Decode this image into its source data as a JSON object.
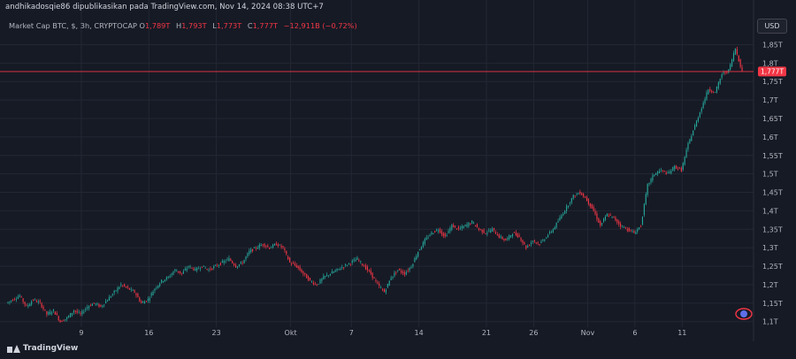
{
  "header": {
    "author": "andhikadosqie86",
    "published_text": "dipublikasikan pada TradingView.com,",
    "date": "Nov 14, 2024 08:38 UTC+7"
  },
  "legend": {
    "symbol": "Market Cap BTC, $, 3h, CRYPTOCAP",
    "open_label": "O",
    "open": "1,789T",
    "high_label": "H",
    "high": "1,793T",
    "low_label": "L",
    "low": "1,773T",
    "close_label": "C",
    "close": "1,777T",
    "change": "−12,911B (−0,72%)"
  },
  "currency_button": "USD",
  "price_badge": "1,777T",
  "footer": {
    "brand": "TradingView"
  },
  "colors": {
    "up": "#26a69a",
    "down": "#f23645",
    "background": "#161a25",
    "grid": "#232734"
  },
  "chart_data": {
    "type": "candlestick",
    "title": "Market Cap BTC, $, 3h, CRYPTOCAP",
    "grid": true,
    "y_axis_side": "right",
    "ylim": [
      1.085,
      1.875
    ],
    "y_ticks": [
      1.1,
      1.15,
      1.2,
      1.25,
      1.3,
      1.35,
      1.4,
      1.45,
      1.5,
      1.55,
      1.6,
      1.65,
      1.7,
      1.75,
      1.8,
      1.85
    ],
    "y_tick_labels": [
      "1,1T",
      "1,15T",
      "1,2T",
      "1,25T",
      "1,3T",
      "1,35T",
      "1,4T",
      "1,45T",
      "1,5T",
      "1,55T",
      "1,6T",
      "1,65T",
      "1,7T",
      "1,75T",
      "1,8T",
      "1,85T"
    ],
    "x_ticks": [
      {
        "label": "9",
        "idx": 11
      },
      {
        "label": "16",
        "idx": 21
      },
      {
        "label": "23",
        "idx": 31
      },
      {
        "label": "Okt",
        "idx": 42
      },
      {
        "label": "7",
        "idx": 51
      },
      {
        "label": "14",
        "idx": 61
      },
      {
        "label": "21",
        "idx": 71
      },
      {
        "label": "26",
        "idx": 78
      },
      {
        "label": "Nov",
        "idx": 86
      },
      {
        "label": "6",
        "idx": 93
      },
      {
        "label": "11",
        "idx": 100
      }
    ],
    "close_series": [
      1.15,
      1.16,
      1.17,
      1.14,
      1.16,
      1.15,
      1.12,
      1.13,
      1.1,
      1.11,
      1.13,
      1.12,
      1.14,
      1.15,
      1.14,
      1.16,
      1.18,
      1.2,
      1.19,
      1.18,
      1.15,
      1.16,
      1.19,
      1.21,
      1.22,
      1.24,
      1.23,
      1.25,
      1.24,
      1.25,
      1.24,
      1.25,
      1.26,
      1.27,
      1.25,
      1.26,
      1.29,
      1.3,
      1.31,
      1.3,
      1.31,
      1.3,
      1.26,
      1.25,
      1.23,
      1.21,
      1.2,
      1.22,
      1.23,
      1.24,
      1.25,
      1.26,
      1.27,
      1.25,
      1.23,
      1.2,
      1.18,
      1.22,
      1.24,
      1.23,
      1.25,
      1.29,
      1.32,
      1.34,
      1.35,
      1.33,
      1.36,
      1.35,
      1.36,
      1.37,
      1.35,
      1.34,
      1.35,
      1.33,
      1.32,
      1.34,
      1.33,
      1.3,
      1.32,
      1.31,
      1.33,
      1.35,
      1.38,
      1.41,
      1.44,
      1.45,
      1.43,
      1.4,
      1.36,
      1.39,
      1.38,
      1.36,
      1.35,
      1.34,
      1.36,
      1.47,
      1.5,
      1.51,
      1.5,
      1.52,
      1.51,
      1.58,
      1.63,
      1.68,
      1.73,
      1.72,
      1.77,
      1.78,
      1.84,
      1.777
    ],
    "last_price": 1.777,
    "last_price_label": "1,777T"
  }
}
